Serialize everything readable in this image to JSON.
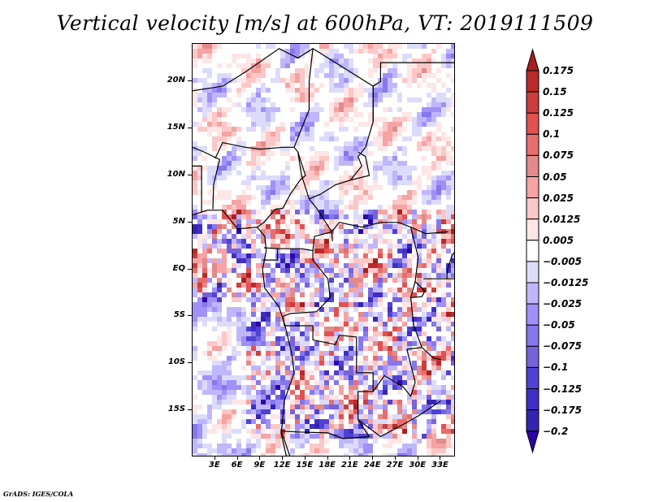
{
  "title": "Vertical velocity [m/s] at 600hPa, VT: 2019111509",
  "credit": "GrADS: IGES/COLA",
  "chart_data": {
    "type": "heatmap",
    "title": "Vertical velocity [m/s] at 600hPa, VT: 2019111509",
    "variable": "Vertical velocity",
    "units": "m/s",
    "level": "600hPa",
    "valid_time": "2019111509",
    "region": "Central Africa",
    "lon_range_deg": [
      0,
      35
    ],
    "lat_range_deg": [
      -20,
      24
    ],
    "y_ticks": [
      {
        "label": "20N",
        "lat": 20
      },
      {
        "label": "15N",
        "lat": 15
      },
      {
        "label": "10N",
        "lat": 10
      },
      {
        "label": "5N",
        "lat": 5
      },
      {
        "label": "EQ",
        "lat": 0
      },
      {
        "label": "5S",
        "lat": -5
      },
      {
        "label": "10S",
        "lat": -10
      },
      {
        "label": "15S",
        "lat": -15
      }
    ],
    "x_ticks": [
      {
        "label": "3E",
        "lon": 3
      },
      {
        "label": "6E",
        "lon": 6
      },
      {
        "label": "9E",
        "lon": 9
      },
      {
        "label": "12E",
        "lon": 12
      },
      {
        "label": "15E",
        "lon": 15
      },
      {
        "label": "18E",
        "lon": 18
      },
      {
        "label": "21E",
        "lon": 21
      },
      {
        "label": "24E",
        "lon": 24
      },
      {
        "label": "27E",
        "lon": 27
      },
      {
        "label": "30E",
        "lon": 30
      },
      {
        "label": "33E",
        "lon": 33
      }
    ],
    "colorbar": {
      "orientation": "vertical",
      "placement": "right",
      "levels": [
        "0.175",
        "0.15",
        "0.125",
        "0.1",
        "0.075",
        "0.05",
        "0.025",
        "0.0125",
        "0.005",
        "-0.005",
        "-0.0125",
        "-0.025",
        "-0.05",
        "-0.075",
        "-0.1",
        "-0.125",
        "-0.175",
        "-0.2"
      ],
      "colors": [
        "#a82020",
        "#b92a2a",
        "#cc3d3d",
        "#e35050",
        "#e86d6d",
        "#e38a8a",
        "#f5a3a3",
        "#fcc7c7",
        "#fde6e6",
        "#ffffff",
        "#dcdcfa",
        "#c0b6fb",
        "#a190f8",
        "#8577ec",
        "#7663da",
        "#4f42d3",
        "#3f2ec5",
        "#3524b0",
        "#2c06a8"
      ],
      "extend": "both"
    },
    "description": "Spatial field of 600hPa vertical velocity over Central/West Africa; mostly weak mixed positive (red) and negative (blue) values in the north, strong small-scale noisy alternating red/blue over the Congo basin, Angola and Zambia; Atlantic ocean mainly weak negative (blue) values."
  }
}
